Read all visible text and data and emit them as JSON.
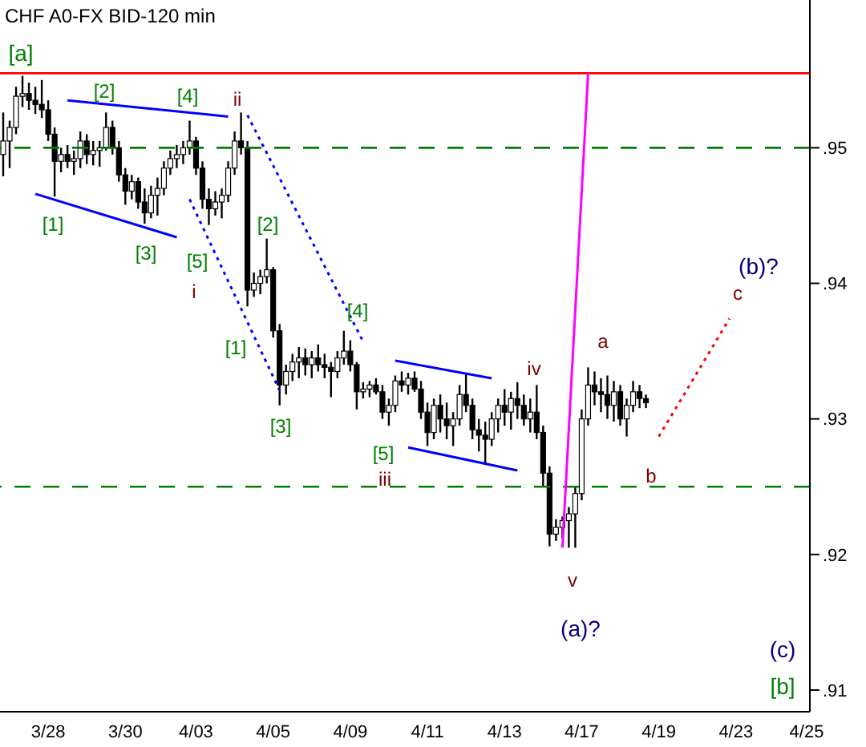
{
  "chart_data": {
    "type": "candlestick",
    "title": "CHF A0-FX BID-120 min",
    "categories": [
      null,
      null,
      null,
      null,
      null,
      null,
      null,
      "3/28",
      null,
      null,
      null,
      null,
      null,
      null,
      null,
      null,
      null,
      null,
      null,
      "3/30",
      null,
      null,
      null,
      null,
      null,
      null,
      null,
      null,
      null,
      null,
      "4/03",
      null,
      null,
      null,
      null,
      null,
      null,
      null,
      null,
      null,
      null,
      null,
      "4/05",
      null,
      null,
      null,
      null,
      null,
      null,
      null,
      null,
      null,
      null,
      null,
      "4/09",
      null,
      null,
      null,
      null,
      null,
      null,
      null,
      null,
      null,
      null,
      null,
      "4/11",
      null,
      null,
      null,
      null,
      null,
      null,
      null,
      null,
      null,
      null,
      null,
      "4/13",
      null,
      null,
      null,
      null,
      null,
      null,
      null,
      null,
      null,
      null,
      null,
      "4/17",
      null,
      null,
      null,
      null,
      null,
      null,
      null,
      null,
      null,
      null,
      null,
      "4/19",
      null,
      null,
      null,
      null,
      null,
      null,
      null,
      null,
      null,
      null,
      null,
      "4/23",
      null,
      null,
      null,
      null,
      null,
      null,
      null,
      null,
      null,
      null,
      "4/25"
    ],
    "color": "#000000",
    "ohlc": [
      [
        0.9495,
        0.9526,
        0.9479,
        0.9505
      ],
      [
        0.9505,
        0.952,
        0.9485,
        0.9515
      ],
      [
        0.9515,
        0.9545,
        0.951,
        0.9538
      ],
      [
        0.9538,
        0.9553,
        0.953,
        0.954
      ],
      [
        0.954,
        0.9548,
        0.9528,
        0.9535
      ],
      [
        0.9535,
        0.9545,
        0.9525,
        0.9532
      ],
      [
        0.9532,
        0.955,
        0.9522,
        0.9528
      ],
      [
        0.9528,
        0.9535,
        0.9505,
        0.951
      ],
      [
        0.951,
        0.9515,
        0.9464,
        0.949
      ],
      [
        0.949,
        0.95,
        0.9482,
        0.9495
      ],
      [
        0.9495,
        0.9502,
        0.9485,
        0.949
      ],
      [
        0.949,
        0.9498,
        0.948,
        0.9492
      ],
      [
        0.9492,
        0.9512,
        0.9485,
        0.9505
      ],
      [
        0.9505,
        0.951,
        0.9488,
        0.9495
      ],
      [
        0.9495,
        0.9505,
        0.9487,
        0.9498
      ],
      [
        0.9498,
        0.9505,
        0.9486,
        0.95
      ],
      [
        0.95,
        0.9526,
        0.9498,
        0.9515
      ],
      [
        0.9515,
        0.952,
        0.9495,
        0.95
      ],
      [
        0.95,
        0.9505,
        0.9475,
        0.948
      ],
      [
        0.948,
        0.9485,
        0.9458,
        0.9468
      ],
      [
        0.9468,
        0.948,
        0.9462,
        0.9475
      ],
      [
        0.9475,
        0.9478,
        0.9455,
        0.946
      ],
      [
        0.946,
        0.947,
        0.9444,
        0.9452
      ],
      [
        0.9452,
        0.9472,
        0.9448,
        0.9465
      ],
      [
        0.9465,
        0.9478,
        0.945,
        0.947
      ],
      [
        0.947,
        0.949,
        0.9465,
        0.9485
      ],
      [
        0.9485,
        0.9498,
        0.948,
        0.9492
      ],
      [
        0.9492,
        0.9502,
        0.9485,
        0.9495
      ],
      [
        0.9495,
        0.9505,
        0.9488,
        0.95
      ],
      [
        0.95,
        0.952,
        0.9495,
        0.9505
      ],
      [
        0.9505,
        0.9508,
        0.948,
        0.9485
      ],
      [
        0.9485,
        0.949,
        0.9455,
        0.9462
      ],
      [
        0.9462,
        0.947,
        0.9443,
        0.9455
      ],
      [
        0.9455,
        0.9468,
        0.945,
        0.946
      ],
      [
        0.946,
        0.947,
        0.9448,
        0.9465
      ],
      [
        0.9465,
        0.949,
        0.946,
        0.9485
      ],
      [
        0.9485,
        0.9512,
        0.948,
        0.9505
      ],
      [
        0.9505,
        0.9526,
        0.9495,
        0.95
      ],
      [
        0.95,
        0.9505,
        0.9383,
        0.9395
      ],
      [
        0.9395,
        0.9408,
        0.939,
        0.94
      ],
      [
        0.94,
        0.941,
        0.9392,
        0.9405
      ],
      [
        0.9405,
        0.9433,
        0.94,
        0.941
      ],
      [
        0.941,
        0.9412,
        0.936,
        0.9365
      ],
      [
        0.9365,
        0.937,
        0.931,
        0.9325
      ],
      [
        0.9325,
        0.934,
        0.9318,
        0.9335
      ],
      [
        0.9335,
        0.9348,
        0.9328,
        0.9342
      ],
      [
        0.9342,
        0.9353,
        0.933,
        0.9345
      ],
      [
        0.9345,
        0.9352,
        0.9332,
        0.934
      ],
      [
        0.934,
        0.935,
        0.933,
        0.9345
      ],
      [
        0.9345,
        0.9355,
        0.9335,
        0.934
      ],
      [
        0.934,
        0.9348,
        0.933,
        0.9338
      ],
      [
        0.9338,
        0.9342,
        0.9316,
        0.9335
      ],
      [
        0.9335,
        0.935,
        0.933,
        0.9345
      ],
      [
        0.9345,
        0.9365,
        0.934,
        0.935
      ],
      [
        0.935,
        0.9358,
        0.9335,
        0.934
      ],
      [
        0.934,
        0.9342,
        0.9307,
        0.932
      ],
      [
        0.932,
        0.9327,
        0.9315,
        0.9322
      ],
      [
        0.9322,
        0.9328,
        0.9316,
        0.9325
      ],
      [
        0.9325,
        0.933,
        0.9318,
        0.932
      ],
      [
        0.932,
        0.9325,
        0.93,
        0.9305
      ],
      [
        0.9305,
        0.9315,
        0.9295,
        0.931
      ],
      [
        0.931,
        0.9332,
        0.9305,
        0.9328
      ],
      [
        0.9328,
        0.9335,
        0.932,
        0.9325
      ],
      [
        0.9325,
        0.9334,
        0.9318,
        0.933
      ],
      [
        0.933,
        0.9335,
        0.932,
        0.9322
      ],
      [
        0.9322,
        0.9328,
        0.93,
        0.9305
      ],
      [
        0.9305,
        0.9312,
        0.928,
        0.929
      ],
      [
        0.929,
        0.9315,
        0.9285,
        0.931
      ],
      [
        0.931,
        0.9318,
        0.929,
        0.93
      ],
      [
        0.93,
        0.9312,
        0.9285,
        0.9295
      ],
      [
        0.9295,
        0.9305,
        0.928,
        0.93
      ],
      [
        0.93,
        0.9325,
        0.9295,
        0.9318
      ],
      [
        0.9318,
        0.9333,
        0.9305,
        0.931
      ],
      [
        0.931,
        0.9315,
        0.9285,
        0.9292
      ],
      [
        0.9292,
        0.93,
        0.9276,
        0.9288
      ],
      [
        0.9288,
        0.9298,
        0.9266,
        0.9285
      ],
      [
        0.9285,
        0.9305,
        0.928,
        0.93
      ],
      [
        0.93,
        0.9315,
        0.929,
        0.931
      ],
      [
        0.931,
        0.9322,
        0.9295,
        0.9305
      ],
      [
        0.9305,
        0.932,
        0.9292,
        0.9315
      ],
      [
        0.9315,
        0.9327,
        0.93,
        0.931
      ],
      [
        0.931,
        0.9318,
        0.9295,
        0.93
      ],
      [
        0.93,
        0.9315,
        0.929,
        0.9305
      ],
      [
        0.9305,
        0.9325,
        0.9285,
        0.929
      ],
      [
        0.929,
        0.9295,
        0.925,
        0.926
      ],
      [
        0.926,
        0.9265,
        0.9206,
        0.9215
      ],
      [
        0.9215,
        0.9226,
        0.921,
        0.922
      ],
      [
        0.922,
        0.9228,
        0.9212,
        0.9225
      ],
      [
        0.9225,
        0.9235,
        0.9205,
        0.923
      ],
      [
        0.923,
        0.925,
        0.9205,
        0.9245
      ],
      [
        0.9245,
        0.9307,
        0.924,
        0.93
      ],
      [
        0.93,
        0.9338,
        0.9295,
        0.9325
      ],
      [
        0.9325,
        0.9335,
        0.931,
        0.932
      ],
      [
        0.932,
        0.933,
        0.9305,
        0.9318
      ],
      [
        0.9318,
        0.9332,
        0.93,
        0.931
      ],
      [
        0.931,
        0.9328,
        0.9298,
        0.932
      ],
      [
        0.932,
        0.9325,
        0.9295,
        0.93
      ],
      [
        0.93,
        0.9315,
        0.9287,
        0.931
      ],
      [
        0.931,
        0.9328,
        0.9305,
        0.932
      ],
      [
        0.932,
        0.9325,
        0.9308,
        0.9315
      ],
      [
        0.9315,
        0.9318,
        0.9308,
        0.9312
      ],
      null,
      null,
      null,
      null,
      null,
      null,
      null,
      null,
      null,
      null,
      null,
      null,
      null,
      null,
      null,
      null,
      null,
      null,
      null,
      null,
      null,
      null,
      null,
      null,
      null
    ],
    "series": [
      {
        "type": "line",
        "color": "#0000ff",
        "line_style": "solid",
        "values": [
          null,
          null,
          null,
          null,
          null,
          null,
          null,
          null,
          null,
          null,
          0.9535,
          null,
          null,
          null,
          null,
          null,
          null,
          null,
          null,
          null,
          null,
          null,
          null,
          null,
          null,
          null,
          null,
          null,
          null,
          null,
          null,
          null,
          null,
          null,
          null,
          0.9523,
          null,
          null,
          null,
          null,
          null,
          null,
          null,
          null,
          null,
          null,
          null,
          null,
          null,
          null,
          null,
          null,
          null,
          null,
          null,
          null,
          null,
          null,
          null,
          null,
          null,
          null,
          null,
          null,
          null,
          null,
          null,
          null,
          null,
          null,
          null,
          null,
          null,
          null,
          null,
          null,
          null,
          null,
          null,
          null,
          null,
          null,
          null,
          null,
          null,
          null,
          null,
          null,
          null,
          null,
          null,
          null,
          null,
          null,
          null,
          null,
          null,
          null,
          null,
          null,
          null,
          null,
          null,
          null,
          null,
          null,
          null,
          null,
          null,
          null,
          null,
          null,
          null,
          null,
          null,
          null,
          null,
          null,
          null,
          null,
          null,
          null,
          null,
          null,
          null,
          null
        ]
      },
      {
        "type": "line",
        "color": "#0000ff",
        "line_style": "solid",
        "values": [
          null,
          null,
          null,
          null,
          null,
          0.9466,
          null,
          null,
          null,
          null,
          null,
          null,
          null,
          null,
          null,
          null,
          null,
          null,
          null,
          null,
          null,
          null,
          null,
          null,
          null,
          null,
          null,
          0.9434,
          null,
          null,
          null,
          null,
          null,
          null,
          null,
          null,
          null,
          null,
          null,
          null,
          null,
          null,
          null,
          null,
          null,
          null,
          null,
          null,
          null,
          null,
          null,
          null,
          null,
          null,
          null,
          null,
          null,
          null,
          null,
          null,
          null,
          null,
          null,
          null,
          null,
          null,
          null,
          null,
          null,
          null,
          null,
          null,
          null,
          null,
          null,
          null,
          null,
          null,
          null,
          null,
          null,
          null,
          null,
          null,
          null,
          null,
          null,
          null,
          null,
          null,
          null,
          null,
          null,
          null,
          null,
          null,
          null,
          null,
          null,
          null,
          null,
          null,
          null,
          null,
          null,
          null,
          null,
          null,
          null,
          null,
          null,
          null,
          null,
          null,
          null,
          null,
          null,
          null,
          null,
          null,
          null,
          null,
          null,
          null,
          null,
          null
        ]
      },
      {
        "type": "line",
        "color": "#0000ff",
        "line_style": "dotted",
        "values": [
          null,
          null,
          null,
          null,
          null,
          null,
          null,
          null,
          null,
          null,
          null,
          null,
          null,
          null,
          null,
          null,
          null,
          null,
          null,
          null,
          null,
          null,
          null,
          null,
          null,
          null,
          null,
          null,
          null,
          0.9462,
          null,
          null,
          null,
          null,
          null,
          null,
          null,
          null,
          null,
          null,
          null,
          null,
          null,
          0.9321,
          null,
          null,
          null,
          null,
          null,
          null,
          null,
          null,
          null,
          null,
          null,
          null,
          null,
          null,
          null,
          null,
          null,
          null,
          null,
          null,
          null,
          null,
          null,
          null,
          null,
          null,
          null,
          null,
          null,
          null,
          null,
          null,
          null,
          null,
          null,
          null,
          null,
          null,
          null,
          null,
          null,
          null,
          null,
          null,
          null,
          null,
          null,
          null,
          null,
          null,
          null,
          null,
          null,
          null,
          null,
          null,
          null,
          null,
          null,
          null,
          null,
          null,
          null,
          null,
          null,
          null,
          null,
          null,
          null,
          null,
          null,
          null,
          null,
          null,
          null,
          null,
          null,
          null,
          null,
          null,
          null,
          null
        ]
      },
      {
        "type": "line",
        "color": "#0000ff",
        "line_style": "dotted",
        "values": [
          null,
          null,
          null,
          null,
          null,
          null,
          null,
          null,
          null,
          null,
          null,
          null,
          null,
          null,
          null,
          null,
          null,
          null,
          null,
          null,
          null,
          null,
          null,
          null,
          null,
          null,
          null,
          null,
          null,
          null,
          null,
          null,
          null,
          null,
          null,
          null,
          null,
          null,
          0.9524,
          null,
          null,
          null,
          null,
          null,
          null,
          null,
          null,
          null,
          null,
          null,
          null,
          null,
          null,
          null,
          null,
          null,
          0.9357,
          null,
          null,
          null,
          null,
          null,
          null,
          null,
          null,
          null,
          null,
          null,
          null,
          null,
          null,
          null,
          null,
          null,
          null,
          null,
          null,
          null,
          null,
          null,
          null,
          null,
          null,
          null,
          null,
          null,
          null,
          null,
          null,
          null,
          null,
          null,
          null,
          null,
          null,
          null,
          null,
          null,
          null,
          null,
          null,
          null,
          null,
          null,
          null,
          null,
          null,
          null,
          null,
          null,
          null,
          null,
          null,
          null,
          null,
          null,
          null,
          null,
          null,
          null,
          null,
          null,
          null,
          null,
          null,
          null
        ]
      },
      {
        "type": "line",
        "color": "#0000ff",
        "line_style": "solid",
        "values": [
          null,
          null,
          null,
          null,
          null,
          null,
          null,
          null,
          null,
          null,
          null,
          null,
          null,
          null,
          null,
          null,
          null,
          null,
          null,
          null,
          null,
          null,
          null,
          null,
          null,
          null,
          null,
          null,
          null,
          null,
          null,
          null,
          null,
          null,
          null,
          null,
          null,
          null,
          null,
          null,
          null,
          null,
          null,
          null,
          null,
          null,
          null,
          null,
          null,
          null,
          null,
          null,
          null,
          null,
          null,
          null,
          null,
          null,
          null,
          null,
          null,
          0.9343,
          null,
          null,
          null,
          null,
          null,
          null,
          null,
          null,
          null,
          null,
          null,
          null,
          null,
          null,
          0.933,
          null,
          null,
          null,
          null,
          null,
          null,
          null,
          null,
          null,
          null,
          null,
          null,
          null,
          null,
          null,
          null,
          null,
          null,
          null,
          null,
          null,
          null,
          null,
          null,
          null,
          null,
          null,
          null,
          null,
          null,
          null,
          null,
          null,
          null,
          null,
          null,
          null,
          null,
          null,
          null,
          null,
          null,
          null,
          null,
          null,
          null,
          null,
          null,
          null
        ]
      },
      {
        "type": "line",
        "color": "#0000ff",
        "line_style": "solid",
        "values": [
          null,
          null,
          null,
          null,
          null,
          null,
          null,
          null,
          null,
          null,
          null,
          null,
          null,
          null,
          null,
          null,
          null,
          null,
          null,
          null,
          null,
          null,
          null,
          null,
          null,
          null,
          null,
          null,
          null,
          null,
          null,
          null,
          null,
          null,
          null,
          null,
          null,
          null,
          null,
          null,
          null,
          null,
          null,
          null,
          null,
          null,
          null,
          null,
          null,
          null,
          null,
          null,
          null,
          null,
          null,
          null,
          null,
          null,
          null,
          null,
          null,
          null,
          null,
          0.9279,
          null,
          null,
          null,
          null,
          null,
          null,
          null,
          null,
          null,
          null,
          null,
          null,
          null,
          null,
          null,
          null,
          0.9262,
          null,
          null,
          null,
          null,
          null,
          null,
          null,
          null,
          null,
          null,
          null,
          null,
          null,
          null,
          null,
          null,
          null,
          null,
          null,
          null,
          null,
          null,
          null,
          null,
          null,
          null,
          null,
          null,
          null,
          null,
          null,
          null,
          null,
          null,
          null,
          null,
          null,
          null,
          null,
          null,
          null,
          null,
          null,
          null,
          null
        ]
      },
      {
        "type": "line",
        "color": "#ff00ff",
        "line_style": "solid",
        "values": [
          null,
          null,
          null,
          null,
          null,
          null,
          null,
          null,
          null,
          null,
          null,
          null,
          null,
          null,
          null,
          null,
          null,
          null,
          null,
          null,
          null,
          null,
          null,
          null,
          null,
          null,
          null,
          null,
          null,
          null,
          null,
          null,
          null,
          null,
          null,
          null,
          null,
          null,
          null,
          null,
          null,
          null,
          null,
          null,
          null,
          null,
          null,
          null,
          null,
          null,
          null,
          null,
          null,
          null,
          null,
          null,
          null,
          null,
          null,
          null,
          null,
          null,
          null,
          null,
          null,
          null,
          null,
          null,
          null,
          null,
          null,
          null,
          null,
          null,
          null,
          null,
          null,
          null,
          null,
          null,
          null,
          null,
          null,
          null,
          null,
          null,
          null,
          0.9205,
          null,
          null,
          null,
          0.9555,
          null,
          null,
          null,
          null,
          null,
          null,
          null,
          null,
          null,
          null,
          null,
          null,
          null,
          null,
          null,
          null,
          null,
          null,
          null,
          null,
          null,
          null,
          null,
          null,
          null,
          null,
          null,
          null,
          null,
          null,
          null,
          null,
          null,
          null
        ]
      },
      {
        "type": "line",
        "color": "#ff0000",
        "line_style": "dotted",
        "values": [
          null,
          null,
          null,
          null,
          null,
          null,
          null,
          null,
          null,
          null,
          null,
          null,
          null,
          null,
          null,
          null,
          null,
          null,
          null,
          null,
          null,
          null,
          null,
          null,
          null,
          null,
          null,
          null,
          null,
          null,
          null,
          null,
          null,
          null,
          null,
          null,
          null,
          null,
          null,
          null,
          null,
          null,
          null,
          null,
          null,
          null,
          null,
          null,
          null,
          null,
          null,
          null,
          null,
          null,
          null,
          null,
          null,
          null,
          null,
          null,
          null,
          null,
          null,
          null,
          null,
          null,
          null,
          null,
          null,
          null,
          null,
          null,
          null,
          null,
          null,
          null,
          null,
          null,
          null,
          null,
          null,
          null,
          null,
          null,
          null,
          null,
          null,
          null,
          null,
          null,
          null,
          null,
          null,
          null,
          null,
          null,
          null,
          null,
          null,
          null,
          null,
          null,
          0.9287,
          null,
          null,
          null,
          null,
          null,
          null,
          null,
          null,
          null,
          null,
          0.9374,
          null,
          null,
          null,
          null,
          null,
          null,
          null,
          null,
          null,
          null,
          null,
          null
        ]
      }
    ],
    "ref_lines": [
      {
        "axis": "y",
        "value": 0.9555,
        "color": "#ff0000",
        "line_style": "solid"
      },
      {
        "axis": "y",
        "value": 0.95,
        "color": "#008000",
        "line_style": "dashed"
      },
      {
        "axis": "y",
        "value": 0.925,
        "color": "#008000",
        "line_style": "dashed"
      }
    ],
    "ylim": [
      0.9084,
      0.9609
    ],
    "yticks": [
      {
        "value": 0.95,
        "label": ".95"
      },
      {
        "value": 0.94,
        "label": ".94"
      },
      {
        "value": 0.93,
        "label": ".93"
      },
      {
        "value": 0.92,
        "label": ".92"
      },
      {
        "value": 0.91,
        "label": ".91"
      }
    ],
    "annotations": [
      "[a]",
      "[1]",
      "[2]",
      "[3]",
      "[4]",
      "[5]",
      "i",
      "ii",
      "[1]",
      "[2]",
      "[3]",
      "[4]",
      "[5]",
      "iii",
      "iv",
      "a",
      "v",
      "b",
      "c",
      "(a)?",
      "(b)?",
      "(c)",
      "[b]"
    ]
  }
}
